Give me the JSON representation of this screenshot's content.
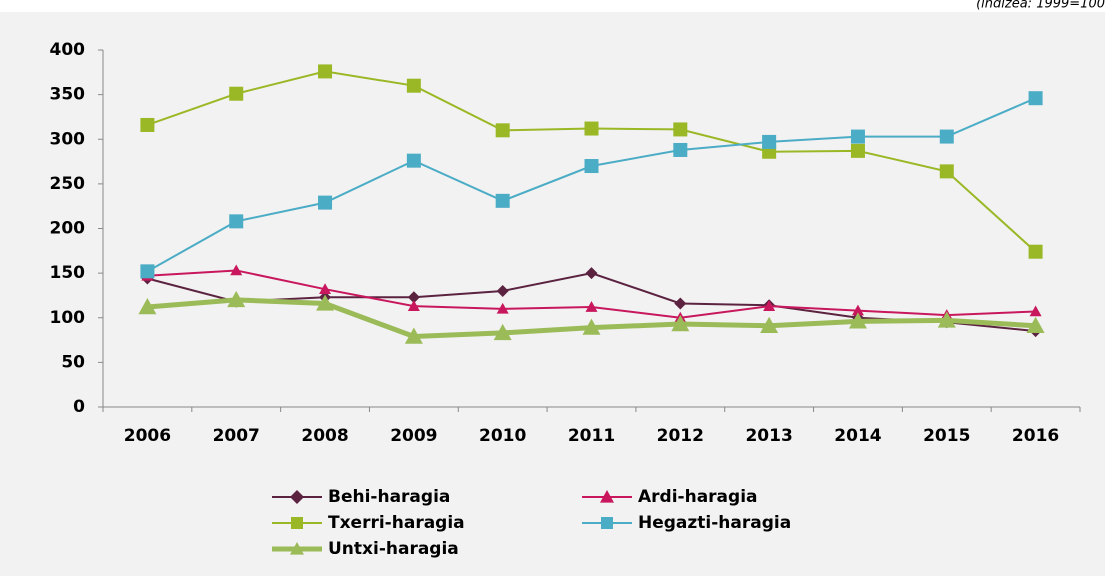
{
  "chart_data": {
    "type": "line",
    "note": "(indizea: 1999=100",
    "categories": [
      "2006",
      "2007",
      "2008",
      "2009",
      "2010",
      "2011",
      "2012",
      "2013",
      "2014",
      "2015",
      "2016"
    ],
    "ylim": [
      0,
      400
    ],
    "yticks": [
      0,
      50,
      100,
      150,
      200,
      250,
      300,
      350,
      400
    ],
    "grid": false,
    "series": [
      {
        "name": "Behi-haragia",
        "color": "#5b2340",
        "marker": "diamond",
        "values": [
          144,
          118,
          123,
          123,
          130,
          150,
          116,
          114,
          100,
          95,
          85
        ]
      },
      {
        "name": "Ardi-haragia",
        "color": "#c8175d",
        "marker": "triangle",
        "values": [
          147,
          153,
          132,
          113,
          110,
          112,
          100,
          113,
          108,
          103,
          107
        ]
      },
      {
        "name": "Txerri-haragia",
        "color": "#9ab825",
        "marker": "square",
        "values": [
          316,
          351,
          376,
          360,
          310,
          312,
          311,
          286,
          287,
          264,
          174
        ]
      },
      {
        "name": "Hegazti-haragia",
        "color": "#4bacc6",
        "marker": "square",
        "values": [
          152,
          208,
          229,
          276,
          231,
          270,
          288,
          297,
          303,
          303,
          346
        ]
      },
      {
        "name": "Untxi-haragia",
        "color": "#9bbb59",
        "marker": "triangle",
        "width": 5,
        "values": [
          112,
          120,
          116,
          79,
          83,
          89,
          93,
          91,
          96,
          97,
          91
        ]
      }
    ]
  }
}
